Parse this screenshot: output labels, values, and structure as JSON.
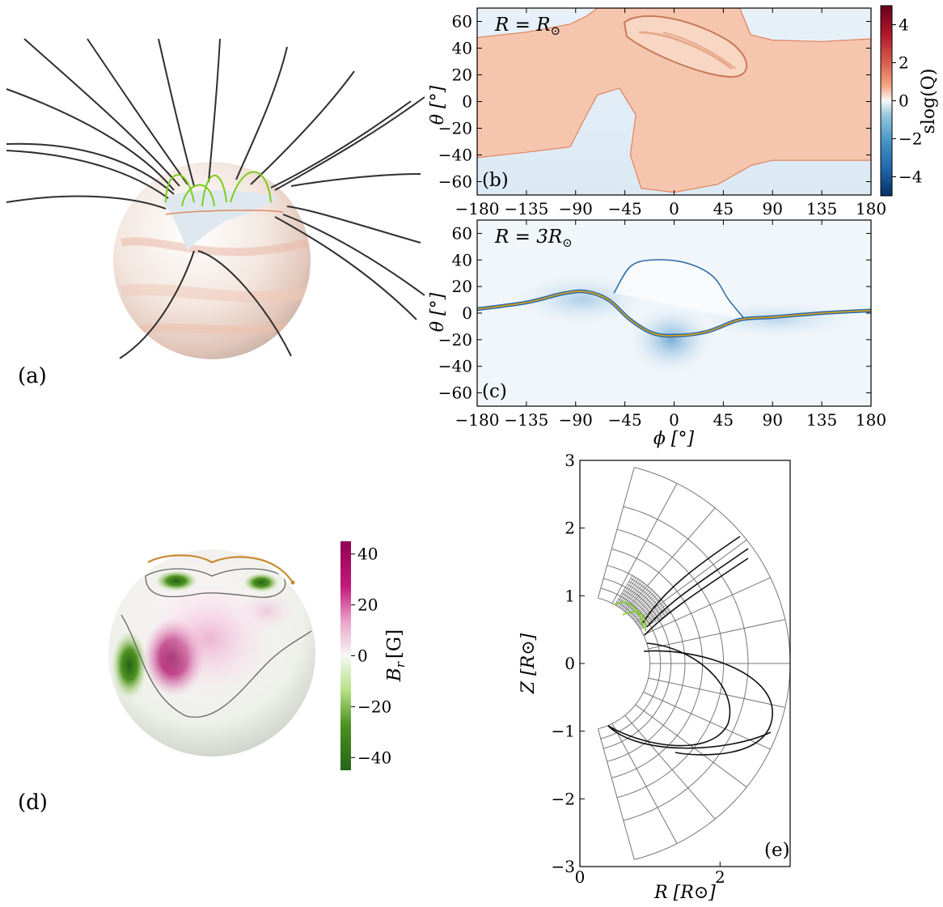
{
  "figure": {
    "panels": {
      "a": {
        "label": "(a)"
      },
      "b": {
        "label": "(b)",
        "annotation": "R = R",
        "annotation_sub": "⊙"
      },
      "c": {
        "label": "(c)",
        "annotation": "R = 3R",
        "annotation_sub": "⊙"
      },
      "d": {
        "label": "(d)"
      },
      "e": {
        "label": "(e)"
      }
    },
    "colors": {
      "q_positive": "#d6583f",
      "q_negative": "#2166ac",
      "br_positive": "#8e0152",
      "br_negative": "#276419",
      "field_line": "#333333",
      "closed_line": "#7ccd1e",
      "separatrix": "#d4a020",
      "grid": "#777777"
    }
  },
  "chart_data": [
    {
      "panel": "b",
      "type": "heatmap",
      "title": "R = R⊙",
      "xlabel": "",
      "ylabel": "θ [°]",
      "xlim": [
        -180,
        180
      ],
      "ylim": [
        -70,
        70
      ],
      "xticks": [
        "−180",
        "−135",
        "−90",
        "−45",
        "0",
        "45",
        "90",
        "135",
        "180"
      ],
      "xtick_values": [
        -180,
        -135,
        -90,
        -45,
        0,
        45,
        90,
        135,
        180
      ],
      "yticks": [
        "60",
        "40",
        "20",
        "0",
        "−20",
        "−40",
        "−60"
      ],
      "ytick_values": [
        60,
        40,
        20,
        0,
        -20,
        -40,
        -60
      ],
      "colorbar": {
        "label": "slog(Q)",
        "range": [
          -5,
          5
        ],
        "ticks": [
          "4",
          "2",
          "0",
          "−2",
          "−4"
        ],
        "tick_values": [
          4,
          2,
          0,
          -2,
          -4
        ]
      },
      "positive_region_upper": [
        [
          -180,
          48
        ],
        [
          -135,
          52
        ],
        [
          -95,
          58
        ],
        [
          -80,
          64
        ],
        [
          -70,
          70
        ],
        [
          -45,
          70
        ],
        [
          0,
          70
        ],
        [
          60,
          70
        ],
        [
          70,
          50
        ],
        [
          90,
          46
        ],
        [
          135,
          45
        ],
        [
          180,
          47
        ]
      ],
      "positive_region_lower": [
        [
          -180,
          -42
        ],
        [
          -135,
          -38
        ],
        [
          -95,
          -34
        ],
        [
          -80,
          -10
        ],
        [
          -70,
          5
        ],
        [
          -50,
          10
        ],
        [
          -35,
          -10
        ],
        [
          -40,
          -40
        ],
        [
          -30,
          -65
        ],
        [
          0,
          -68
        ],
        [
          40,
          -62
        ],
        [
          70,
          -48
        ],
        [
          90,
          -44
        ],
        [
          135,
          -44
        ],
        [
          180,
          -44
        ]
      ]
    },
    {
      "panel": "c",
      "type": "heatmap",
      "title": "R = 3R⊙",
      "xlabel": "ϕ [°]",
      "ylabel": "θ [°]",
      "xlim": [
        -180,
        180
      ],
      "ylim": [
        -70,
        70
      ],
      "xticks": [
        "−180",
        "−135",
        "−90",
        "−45",
        "0",
        "45",
        "90",
        "135",
        "180"
      ],
      "xtick_values": [
        -180,
        -135,
        -90,
        -45,
        0,
        45,
        90,
        135,
        180
      ],
      "yticks": [
        "60",
        "40",
        "20",
        "0",
        "−20",
        "−40",
        "−60"
      ],
      "ytick_values": [
        60,
        40,
        20,
        0,
        -20,
        -40,
        -60
      ],
      "current_sheet": [
        [
          -180,
          3
        ],
        [
          -135,
          8
        ],
        [
          -100,
          15
        ],
        [
          -80,
          16
        ],
        [
          -60,
          10
        ],
        [
          -40,
          -5
        ],
        [
          -20,
          -15
        ],
        [
          0,
          -17
        ],
        [
          30,
          -14
        ],
        [
          60,
          -5
        ],
        [
          90,
          -3
        ],
        [
          135,
          0
        ],
        [
          180,
          2
        ]
      ],
      "dome": [
        [
          -55,
          15
        ],
        [
          -40,
          35
        ],
        [
          -20,
          40
        ],
        [
          10,
          38
        ],
        [
          35,
          28
        ],
        [
          50,
          10
        ],
        [
          65,
          -5
        ]
      ]
    },
    {
      "panel": "d",
      "type": "heatmap",
      "colorbar": {
        "label": "B",
        "label_sub": "r",
        "label_unit": "[G]",
        "range": [
          -45,
          45
        ],
        "ticks": [
          "40",
          "20",
          "0",
          "−20",
          "−40"
        ],
        "tick_values": [
          40,
          20,
          0,
          -20,
          -40
        ]
      }
    },
    {
      "panel": "e",
      "type": "scatter",
      "xlabel": "R [R⊙]",
      "ylabel": "Z [R⊙]",
      "xlim": [
        0,
        3
      ],
      "ylim": [
        -3,
        3
      ],
      "xticks": [
        "0",
        "2"
      ],
      "xtick_values": [
        0,
        2
      ],
      "yticks": [
        "3",
        "2",
        "1",
        "0",
        "−1",
        "−2",
        "−3"
      ],
      "ytick_values": [
        3,
        2,
        1,
        0,
        -1,
        -2,
        -3
      ],
      "inner_radius": 1,
      "outer_radius": 3,
      "theta_extent_deg": [
        -75,
        75
      ]
    }
  ]
}
